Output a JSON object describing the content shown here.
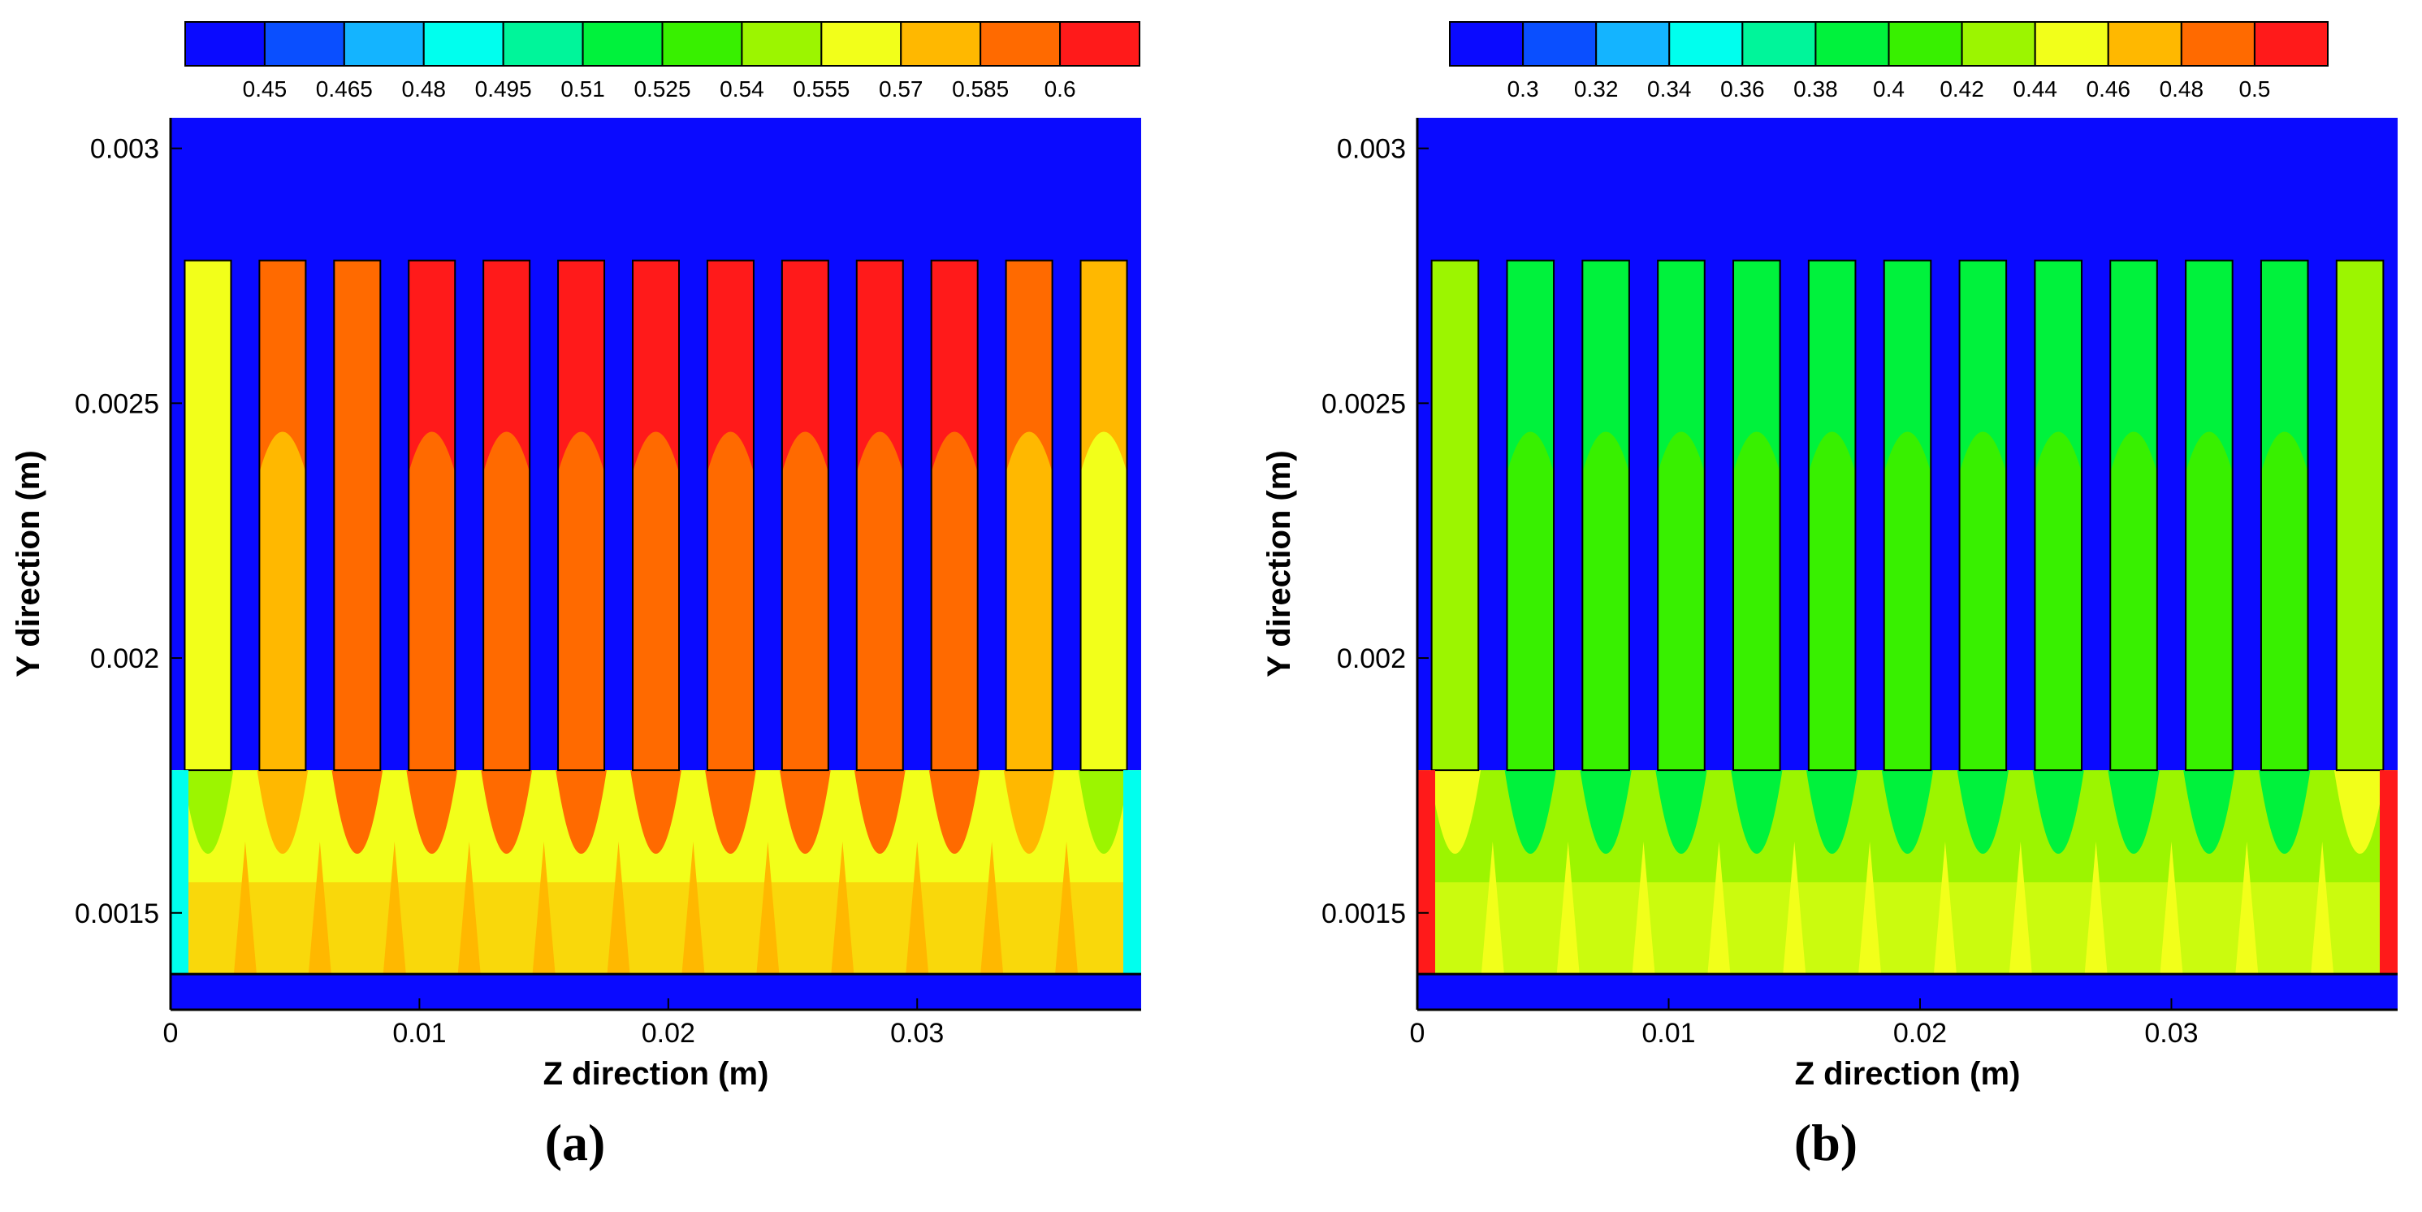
{
  "figure": {
    "panels": [
      "a",
      "b"
    ]
  },
  "chart_data": [
    {
      "type": "heatmap",
      "panel_label": "a",
      "panel_label_text": "(a)",
      "xlabel": "Z direction (m)",
      "ylabel": "Y direction (m)",
      "xlim": [
        0,
        0.039
      ],
      "ylim": [
        0.00131,
        0.00306
      ],
      "x_ticks": [
        0,
        0.01,
        0.02,
        0.03
      ],
      "x_tick_labels": [
        "0",
        "0.01",
        "0.02",
        "0.03"
      ],
      "y_ticks": [
        0.0015,
        0.002,
        0.0025,
        0.003
      ],
      "y_tick_labels": [
        "0.0015",
        "0.002",
        "0.0025",
        "0.003"
      ],
      "colorbar": {
        "position": "top",
        "colors": [
          "#0a0aff",
          "#0a4fff",
          "#14b4ff",
          "#00ffee",
          "#00f59a",
          "#00f23c",
          "#38f000",
          "#9cf500",
          "#f2ff1a",
          "#ffb800",
          "#ff6a00",
          "#ff1a1a"
        ],
        "labels": [
          "0.45",
          "0.465",
          "0.48",
          "0.495",
          "0.51",
          "0.525",
          "0.54",
          "0.555",
          "0.57",
          "0.585",
          "0.6"
        ]
      },
      "geometry": {
        "channel_y_top": 0.00278,
        "channel_y_bottom": 0.00178,
        "porous_y_bottom": 0.00138,
        "rib_y_bottom": 0.00131,
        "n_channels": 13
      },
      "channel_top_colors": [
        "#f2ff1a",
        "#ff6a00",
        "#ff6a00",
        "#ff1a1a",
        "#ff1a1a",
        "#ff1a1a",
        "#ff1a1a",
        "#ff1a1a",
        "#ff1a1a",
        "#ff1a1a",
        "#ff1a1a",
        "#ff6a00",
        "#ffb800"
      ],
      "channel_mid_colors": [
        "#f2ff1a",
        "#ffb800",
        "#ff6a00",
        "#ff6a00",
        "#ff6a00",
        "#ff6a00",
        "#ff6a00",
        "#ff6a00",
        "#ff6a00",
        "#ff6a00",
        "#ff6a00",
        "#ffb800",
        "#f2ff1a"
      ],
      "plume_core_colors": [
        "#9cf500",
        "#ffb800",
        "#ff6a00",
        "#ff6a00",
        "#ff6a00",
        "#ff6a00",
        "#ff6a00",
        "#ff6a00",
        "#ff6a00",
        "#ff6a00",
        "#ff6a00",
        "#ffb800",
        "#9cf500"
      ],
      "porous_base_color": "#f2ff1a",
      "porous_bottom_color": "#ffb800",
      "edge_colors": [
        "#00ffee",
        "#00ffee"
      ],
      "rib_color": "#0a0aff",
      "background_color": "#0a0aff"
    },
    {
      "type": "heatmap",
      "panel_label": "b",
      "panel_label_text": "(b)",
      "xlabel": "Z direction (m)",
      "ylabel": "Y direction (m)",
      "xlim": [
        0,
        0.039
      ],
      "ylim": [
        0.00131,
        0.00306
      ],
      "x_ticks": [
        0,
        0.01,
        0.02,
        0.03
      ],
      "x_tick_labels": [
        "0",
        "0.01",
        "0.02",
        "0.03"
      ],
      "y_ticks": [
        0.0015,
        0.002,
        0.0025,
        0.003
      ],
      "y_tick_labels": [
        "0.0015",
        "0.002",
        "0.0025",
        "0.003"
      ],
      "colorbar": {
        "position": "top",
        "colors": [
          "#0a0aff",
          "#0a4fff",
          "#14b4ff",
          "#00ffee",
          "#00f59a",
          "#00f23c",
          "#38f000",
          "#9cf500",
          "#f2ff1a",
          "#ffb800",
          "#ff6a00",
          "#ff1a1a"
        ],
        "labels": [
          "0.3",
          "0.32",
          "0.34",
          "0.36",
          "0.38",
          "0.4",
          "0.42",
          "0.44",
          "0.46",
          "0.48",
          "0.5"
        ]
      },
      "geometry": {
        "channel_y_top": 0.00278,
        "channel_y_bottom": 0.00178,
        "porous_y_bottom": 0.00138,
        "rib_y_bottom": 0.00131,
        "n_channels": 13
      },
      "channel_top_colors": [
        "#9cf500",
        "#00f23c",
        "#00f23c",
        "#00f23c",
        "#00f23c",
        "#00f23c",
        "#00f23c",
        "#00f23c",
        "#00f23c",
        "#00f23c",
        "#00f23c",
        "#00f23c",
        "#9cf500"
      ],
      "channel_mid_colors": [
        "#9cf500",
        "#38f000",
        "#38f000",
        "#38f000",
        "#38f000",
        "#38f000",
        "#38f000",
        "#38f000",
        "#38f000",
        "#38f000",
        "#38f000",
        "#38f000",
        "#9cf500"
      ],
      "plume_core_colors": [
        "#f2ff1a",
        "#00f23c",
        "#00f23c",
        "#00f23c",
        "#00f23c",
        "#00f23c",
        "#00f23c",
        "#00f23c",
        "#00f23c",
        "#00f23c",
        "#00f23c",
        "#00f23c",
        "#f2ff1a"
      ],
      "porous_base_color": "#9cf500",
      "porous_bottom_color": "#f2ff1a",
      "edge_colors": [
        "#ff1a1a",
        "#ff1a1a"
      ],
      "rib_color": "#0a0aff",
      "background_color": "#0a0aff"
    }
  ]
}
